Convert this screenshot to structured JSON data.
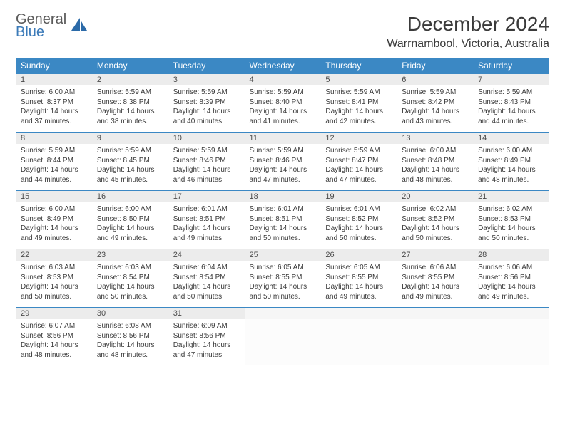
{
  "brand": {
    "word1": "General",
    "word2": "Blue"
  },
  "title": "December 2024",
  "location": "Warrnambool, Victoria, Australia",
  "colors": {
    "header_bg": "#3b88c4",
    "header_text": "#ffffff",
    "daynum_bg": "#ececec",
    "daynum_border": "#3b88c4",
    "body_text": "#3a3a3a",
    "logo_gray": "#5a5a5a",
    "logo_blue": "#3b7ab8"
  },
  "dow": [
    "Sunday",
    "Monday",
    "Tuesday",
    "Wednesday",
    "Thursday",
    "Friday",
    "Saturday"
  ],
  "weeks": [
    [
      {
        "n": "1",
        "sr": "6:00 AM",
        "ss": "8:37 PM",
        "dl": "14 hours and 37 minutes."
      },
      {
        "n": "2",
        "sr": "5:59 AM",
        "ss": "8:38 PM",
        "dl": "14 hours and 38 minutes."
      },
      {
        "n": "3",
        "sr": "5:59 AM",
        "ss": "8:39 PM",
        "dl": "14 hours and 40 minutes."
      },
      {
        "n": "4",
        "sr": "5:59 AM",
        "ss": "8:40 PM",
        "dl": "14 hours and 41 minutes."
      },
      {
        "n": "5",
        "sr": "5:59 AM",
        "ss": "8:41 PM",
        "dl": "14 hours and 42 minutes."
      },
      {
        "n": "6",
        "sr": "5:59 AM",
        "ss": "8:42 PM",
        "dl": "14 hours and 43 minutes."
      },
      {
        "n": "7",
        "sr": "5:59 AM",
        "ss": "8:43 PM",
        "dl": "14 hours and 44 minutes."
      }
    ],
    [
      {
        "n": "8",
        "sr": "5:59 AM",
        "ss": "8:44 PM",
        "dl": "14 hours and 44 minutes."
      },
      {
        "n": "9",
        "sr": "5:59 AM",
        "ss": "8:45 PM",
        "dl": "14 hours and 45 minutes."
      },
      {
        "n": "10",
        "sr": "5:59 AM",
        "ss": "8:46 PM",
        "dl": "14 hours and 46 minutes."
      },
      {
        "n": "11",
        "sr": "5:59 AM",
        "ss": "8:46 PM",
        "dl": "14 hours and 47 minutes."
      },
      {
        "n": "12",
        "sr": "5:59 AM",
        "ss": "8:47 PM",
        "dl": "14 hours and 47 minutes."
      },
      {
        "n": "13",
        "sr": "6:00 AM",
        "ss": "8:48 PM",
        "dl": "14 hours and 48 minutes."
      },
      {
        "n": "14",
        "sr": "6:00 AM",
        "ss": "8:49 PM",
        "dl": "14 hours and 48 minutes."
      }
    ],
    [
      {
        "n": "15",
        "sr": "6:00 AM",
        "ss": "8:49 PM",
        "dl": "14 hours and 49 minutes."
      },
      {
        "n": "16",
        "sr": "6:00 AM",
        "ss": "8:50 PM",
        "dl": "14 hours and 49 minutes."
      },
      {
        "n": "17",
        "sr": "6:01 AM",
        "ss": "8:51 PM",
        "dl": "14 hours and 49 minutes."
      },
      {
        "n": "18",
        "sr": "6:01 AM",
        "ss": "8:51 PM",
        "dl": "14 hours and 50 minutes."
      },
      {
        "n": "19",
        "sr": "6:01 AM",
        "ss": "8:52 PM",
        "dl": "14 hours and 50 minutes."
      },
      {
        "n": "20",
        "sr": "6:02 AM",
        "ss": "8:52 PM",
        "dl": "14 hours and 50 minutes."
      },
      {
        "n": "21",
        "sr": "6:02 AM",
        "ss": "8:53 PM",
        "dl": "14 hours and 50 minutes."
      }
    ],
    [
      {
        "n": "22",
        "sr": "6:03 AM",
        "ss": "8:53 PM",
        "dl": "14 hours and 50 minutes."
      },
      {
        "n": "23",
        "sr": "6:03 AM",
        "ss": "8:54 PM",
        "dl": "14 hours and 50 minutes."
      },
      {
        "n": "24",
        "sr": "6:04 AM",
        "ss": "8:54 PM",
        "dl": "14 hours and 50 minutes."
      },
      {
        "n": "25",
        "sr": "6:05 AM",
        "ss": "8:55 PM",
        "dl": "14 hours and 50 minutes."
      },
      {
        "n": "26",
        "sr": "6:05 AM",
        "ss": "8:55 PM",
        "dl": "14 hours and 49 minutes."
      },
      {
        "n": "27",
        "sr": "6:06 AM",
        "ss": "8:55 PM",
        "dl": "14 hours and 49 minutes."
      },
      {
        "n": "28",
        "sr": "6:06 AM",
        "ss": "8:56 PM",
        "dl": "14 hours and 49 minutes."
      }
    ],
    [
      {
        "n": "29",
        "sr": "6:07 AM",
        "ss": "8:56 PM",
        "dl": "14 hours and 48 minutes."
      },
      {
        "n": "30",
        "sr": "6:08 AM",
        "ss": "8:56 PM",
        "dl": "14 hours and 48 minutes."
      },
      {
        "n": "31",
        "sr": "6:09 AM",
        "ss": "8:56 PM",
        "dl": "14 hours and 47 minutes."
      },
      null,
      null,
      null,
      null
    ]
  ],
  "labels": {
    "sunrise": "Sunrise: ",
    "sunset": "Sunset: ",
    "daylight": "Daylight: "
  }
}
